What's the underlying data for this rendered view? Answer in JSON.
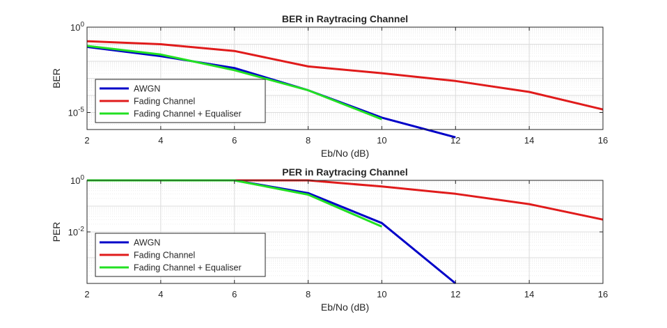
{
  "chart_data": [
    {
      "type": "line",
      "title": "BER in Raytracing Channel",
      "xlabel": "Eb/No (dB)",
      "ylabel": "BER",
      "xlim": [
        2,
        16
      ],
      "ylim": [
        1e-06,
        1
      ],
      "yscale": "log",
      "xticks": [
        2,
        4,
        6,
        8,
        10,
        12,
        14,
        16
      ],
      "xtick_labels": [
        "2",
        "4",
        "6",
        "8",
        "10",
        "12",
        "14",
        "16"
      ],
      "yticks": [
        1,
        1e-05
      ],
      "ytick_labels": [
        {
          "base": "10",
          "exp": "0"
        },
        {
          "base": "10",
          "exp": "-5"
        }
      ],
      "grid": true,
      "legend_position": "bottom-left",
      "series": [
        {
          "name": "AWGN",
          "color": "#0000c8",
          "x": [
            2,
            4,
            6,
            8,
            10,
            12
          ],
          "y": [
            0.07,
            0.02,
            0.004,
            0.0002,
            5e-06,
            3.5e-07
          ]
        },
        {
          "name": "Fading Channel",
          "color": "#e01b1b",
          "x": [
            2,
            4,
            6,
            8,
            10,
            12,
            14,
            16
          ],
          "y": [
            0.15,
            0.1,
            0.04,
            0.005,
            0.002,
            0.0007,
            0.00016,
            1.5e-05
          ]
        },
        {
          "name": "Fading Channel + Equaliser",
          "color": "#22e022",
          "x": [
            2,
            4,
            6,
            8,
            10
          ],
          "y": [
            0.08,
            0.025,
            0.003,
            0.0002,
            4e-06
          ]
        }
      ]
    },
    {
      "type": "line",
      "title": "PER in Raytracing Channel",
      "xlabel": "Eb/No (dB)",
      "ylabel": "PER",
      "xlim": [
        2,
        16
      ],
      "ylim": [
        0.0001,
        1
      ],
      "yscale": "log",
      "xticks": [
        2,
        4,
        6,
        8,
        10,
        12,
        14,
        16
      ],
      "xtick_labels": [
        "2",
        "4",
        "6",
        "8",
        "10",
        "12",
        "14",
        "16"
      ],
      "yticks": [
        1,
        0.01
      ],
      "ytick_labels": [
        {
          "base": "10",
          "exp": "0"
        },
        {
          "base": "10",
          "exp": "-2"
        }
      ],
      "grid": true,
      "legend_position": "bottom-left",
      "series": [
        {
          "name": "AWGN",
          "color": "#0000c8",
          "x": [
            2,
            4,
            6,
            8,
            10,
            12
          ],
          "y": [
            1,
            1,
            1,
            0.32,
            0.022,
            0.0001
          ]
        },
        {
          "name": "Fading Channel",
          "color": "#e01b1b",
          "x": [
            2,
            4,
            6,
            8,
            10,
            12,
            14,
            16
          ],
          "y": [
            1,
            1,
            1,
            1,
            0.58,
            0.3,
            0.12,
            0.03
          ]
        },
        {
          "name": "Fading Channel + Equaliser",
          "color": "#22e022",
          "x": [
            2,
            4,
            6,
            8,
            10
          ],
          "y": [
            1,
            1,
            1,
            0.28,
            0.016
          ]
        }
      ]
    }
  ]
}
